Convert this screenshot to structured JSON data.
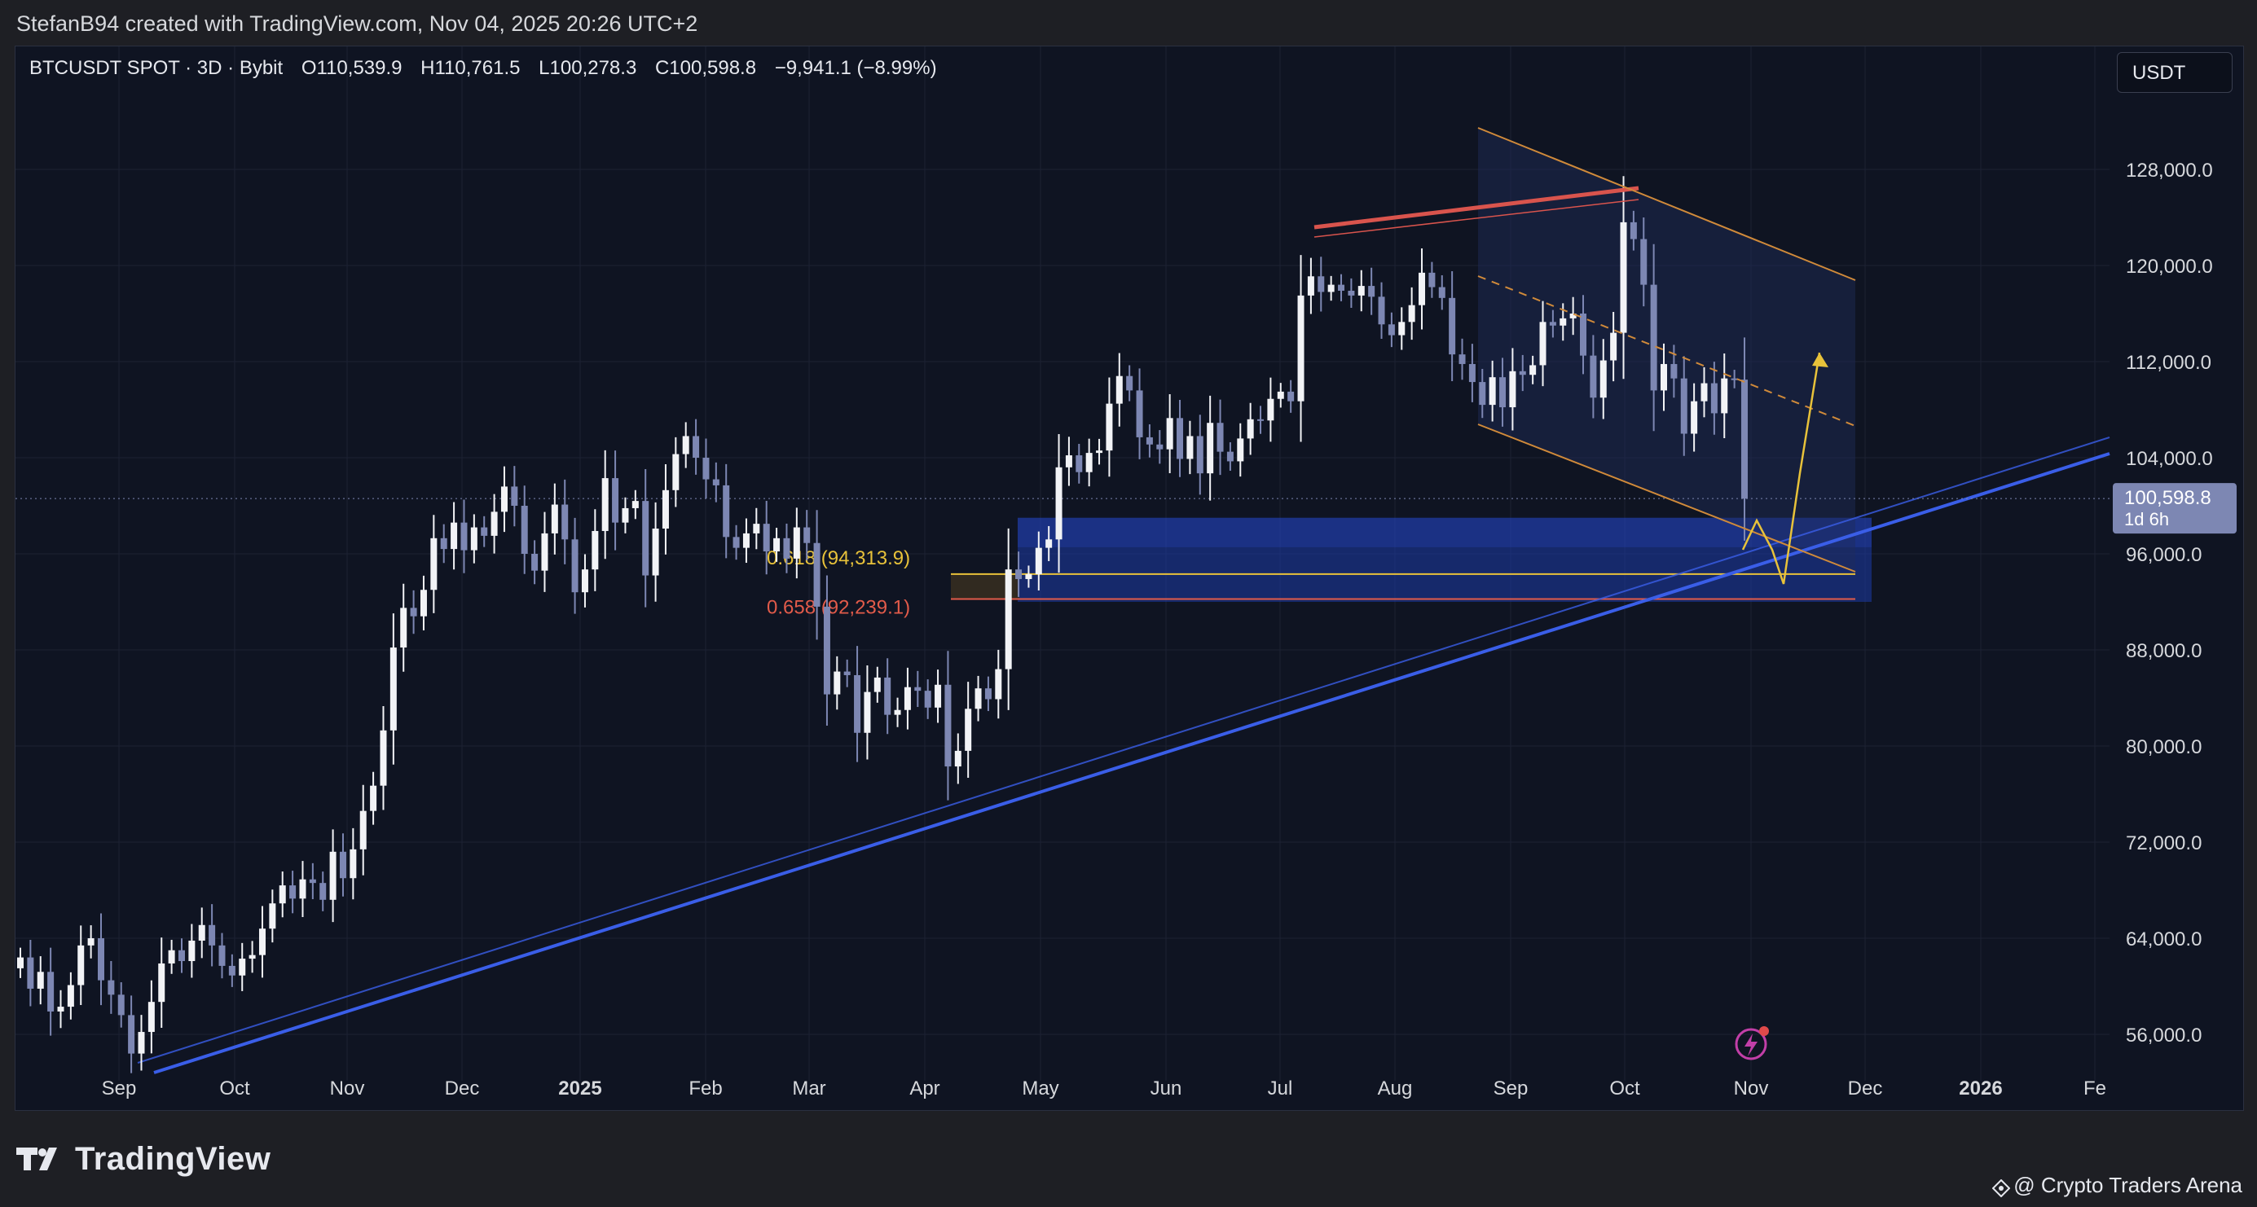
{
  "attribution": "StefanB94 created with TradingView.com, Nov 04, 2025 20:26 UTC+2",
  "legend": {
    "symbol": "BTCUSDT SPOT · 3D · Bybit",
    "open": "O110,539.9",
    "high": "H110,761.5",
    "low": "L100,278.3",
    "close": "C100,598.8",
    "change": "−9,941.1 (−8.99%)"
  },
  "currency_button": "USDT",
  "brand": "TradingView",
  "credit": "@ Crypto Traders Arena",
  "icons": [
    "tradingview-logo-icon",
    "lightning-alert-icon",
    "credit-gem-icon"
  ],
  "colors": {
    "up_candle": "#f2f3f6",
    "down_candle": "#7d87b3",
    "trendline": "#3a5ee8",
    "channel": "#d08a3a",
    "resistance": "#d9544d",
    "projection": "#e8c23a",
    "zone": "#1d3aa8",
    "fib_618": "#e8c23a",
    "fib_658": "#e25b4a"
  },
  "chart_data": {
    "type": "candlestick",
    "interval": "3D",
    "x_axis_labels": [
      "Sep",
      "Oct",
      "Nov",
      "Dec",
      "2025",
      "Feb",
      "Mar",
      "Apr",
      "May",
      "Jun",
      "Jul",
      "Aug",
      "Sep",
      "Oct",
      "Nov",
      "Dec",
      "2026",
      "Fe"
    ],
    "y_axis_labels": [
      "128,000.0",
      "120,000.0",
      "112,000.0",
      "104,000.0",
      "96,000.0",
      "88,000.0",
      "80,000.0",
      "72,000.0",
      "64,000.0",
      "56,000.0"
    ],
    "ylim": [
      55000,
      133000
    ],
    "price_tag": {
      "value": "100,598.8",
      "countdown": "1d 6h"
    },
    "fib_levels": [
      {
        "label": "0.618 (94,313.9)",
        "value": 94313.9
      },
      {
        "label": "0.658 (92,239.1)",
        "value": 92239.1
      }
    ],
    "closes": [
      62400,
      59800,
      61200,
      57900,
      58300,
      60100,
      63400,
      64000,
      60500,
      59300,
      57600,
      54400,
      56200,
      58700,
      61900,
      63000,
      62100,
      63800,
      65100,
      63400,
      61700,
      60900,
      62300,
      62600,
      64800,
      66900,
      68400,
      67300,
      68900,
      68600,
      67200,
      71200,
      69000,
      71400,
      74600,
      76700,
      81300,
      88200,
      91500,
      90800,
      93000,
      97300,
      96400,
      98600,
      96300,
      98200,
      97500,
      99500,
      101600,
      100000,
      96000,
      94600,
      97700,
      100100,
      97200,
      92800,
      94700,
      97900,
      102300,
      98600,
      99800,
      100400,
      94200,
      98100,
      101300,
      104300,
      105800,
      104000,
      102200,
      101700,
      97400,
      96500,
      97700,
      98500,
      96200,
      97300,
      95600,
      98200,
      96900,
      91600,
      84300,
      86200,
      85900,
      81100,
      84500,
      85700,
      82600,
      83000,
      84900,
      84600,
      83200,
      85100,
      78300,
      79600,
      83100,
      84800,
      83900,
      86400,
      94700,
      93900,
      94300,
      96500,
      97200,
      103200,
      104200,
      102800,
      104400,
      104600,
      108500,
      110800,
      109600,
      105700,
      105100,
      104700,
      107300,
      103900,
      105800,
      102700,
      106900,
      104500,
      103700,
      105600,
      107200,
      107100,
      108900,
      109500,
      108700,
      117500,
      119100,
      117800,
      118400,
      117900,
      117500,
      118300,
      117400,
      115100,
      114200,
      115300,
      116700,
      119400,
      118200,
      117300,
      112600,
      111800,
      110300,
      108400,
      110700,
      108200,
      111200,
      110900,
      111700,
      115300,
      115000,
      115600,
      116000,
      112500,
      109000,
      112100,
      114400,
      123600,
      122200,
      118400,
      109600,
      111800,
      110600,
      106000,
      108700,
      110200,
      107700,
      110600,
      110500,
      100600
    ]
  }
}
